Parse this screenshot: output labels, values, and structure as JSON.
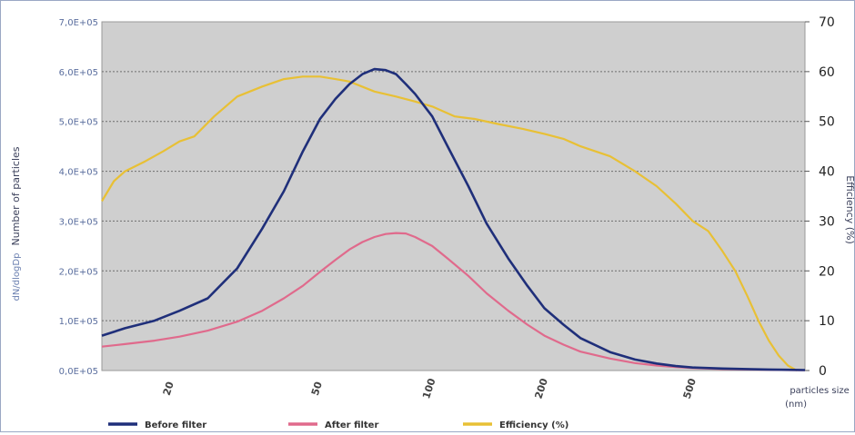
{
  "chart_data": {
    "type": "line",
    "x_scale": "log",
    "xlim": [
      13,
      1000
    ],
    "ylim": [
      0,
      700000
    ],
    "y2lim": [
      0,
      70
    ],
    "grid": true,
    "ylabel": "Number of particles",
    "ylabel_secondary": "dN/dlogDp",
    "y2label": "Efficiency (%)",
    "xlabel": "particles size (nm)",
    "xlabel_lines": [
      "particles size",
      "(nm)"
    ],
    "y_ticks": [
      {
        "value": 0,
        "label": "0,0E+05"
      },
      {
        "value": 100000,
        "label": "1,0E+05"
      },
      {
        "value": 200000,
        "label": "2,0E+05"
      },
      {
        "value": 300000,
        "label": "3,0E+05"
      },
      {
        "value": 400000,
        "label": "4,0E+05"
      },
      {
        "value": 500000,
        "label": "5,0E+05"
      },
      {
        "value": 600000,
        "label": "6,0E+05"
      },
      {
        "value": 700000,
        "label": "7,0E+05"
      }
    ],
    "y2_ticks": [
      {
        "value": 0,
        "label": "0"
      },
      {
        "value": 10,
        "label": "10"
      },
      {
        "value": 20,
        "label": "20"
      },
      {
        "value": 30,
        "label": "30"
      },
      {
        "value": 40,
        "label": "40"
      },
      {
        "value": 50,
        "label": "50"
      },
      {
        "value": 60,
        "label": "60"
      },
      {
        "value": 70,
        "label": "70"
      }
    ],
    "x_ticks": [
      {
        "value": 20,
        "label": "20"
      },
      {
        "value": 50,
        "label": "50"
      },
      {
        "value": 100,
        "label": "100"
      },
      {
        "value": 200,
        "label": "200"
      },
      {
        "value": 500,
        "label": "500"
      }
    ],
    "legend_position": "bottom",
    "series": [
      {
        "name": "Before filter",
        "axis": "left",
        "color": "#1f2f7a",
        "x": [
          13,
          15,
          18,
          21,
          25,
          30,
          35,
          40,
          45,
          50,
          55,
          60,
          65,
          70,
          75,
          80,
          85,
          90,
          100,
          110,
          125,
          140,
          160,
          180,
          200,
          225,
          250,
          300,
          350,
          400,
          450,
          500,
          600,
          700,
          800,
          900,
          1000
        ],
        "y": [
          70000,
          85000,
          100000,
          120000,
          145000,
          205000,
          285000,
          360000,
          440000,
          505000,
          545000,
          575000,
          595000,
          605000,
          603000,
          595000,
          575000,
          555000,
          510000,
          450000,
          370000,
          295000,
          225000,
          170000,
          125000,
          92000,
          65000,
          37000,
          22000,
          14000,
          9000,
          6000,
          4000,
          3000,
          2000,
          1500,
          1000
        ]
      },
      {
        "name": "After filter",
        "axis": "left",
        "color": "#e06a8c",
        "x": [
          13,
          15,
          18,
          21,
          25,
          30,
          35,
          40,
          45,
          50,
          55,
          60,
          65,
          70,
          75,
          80,
          85,
          90,
          100,
          110,
          125,
          140,
          160,
          180,
          200,
          225,
          250,
          300,
          350,
          400,
          450,
          500,
          600,
          700,
          800,
          900,
          1000
        ],
        "y": [
          48000,
          53000,
          60000,
          68000,
          80000,
          98000,
          120000,
          145000,
          170000,
          198000,
          222000,
          243000,
          258000,
          268000,
          274000,
          276000,
          275000,
          268000,
          250000,
          225000,
          190000,
          155000,
          120000,
          92000,
          70000,
          52000,
          38000,
          24000,
          15000,
          10000,
          7000,
          5000,
          3000,
          2000,
          1500,
          1000,
          800
        ]
      },
      {
        "name": "Efficiency (%)",
        "axis": "right",
        "color": "#e8c035",
        "x": [
          13,
          14,
          15,
          17,
          19,
          21,
          23,
          26,
          30,
          35,
          40,
          45,
          50,
          55,
          60,
          70,
          80,
          90,
          100,
          115,
          130,
          150,
          175,
          200,
          225,
          250,
          300,
          350,
          400,
          450,
          500,
          550,
          600,
          650,
          700,
          750,
          800,
          850,
          900,
          950
        ],
        "y": [
          34,
          38,
          40,
          42,
          44,
          46,
          47,
          51,
          55,
          57,
          58.5,
          59,
          59,
          58.5,
          58,
          56,
          55,
          54,
          53,
          51,
          50.5,
          49.5,
          48.5,
          47.5,
          46.5,
          45,
          43,
          40,
          37,
          33.5,
          30,
          28,
          24,
          20,
          15,
          10,
          6,
          3,
          1,
          0
        ]
      }
    ]
  }
}
